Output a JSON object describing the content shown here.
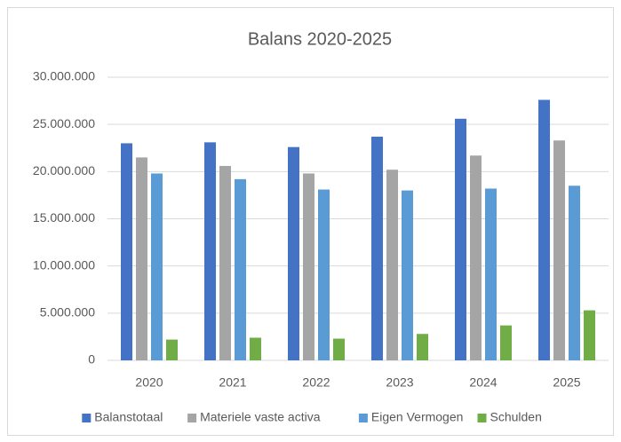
{
  "chart_data": {
    "type": "bar",
    "title": "Balans 2020-2025",
    "categories": [
      "2020",
      "2021",
      "2022",
      "2023",
      "2024",
      "2025"
    ],
    "series": [
      {
        "name": "Balanstotaal",
        "color": "#4472c4",
        "values": [
          23000000,
          23100000,
          22600000,
          23700000,
          25600000,
          27600000
        ]
      },
      {
        "name": "Materiele vaste activa",
        "color": "#a5a5a5",
        "values": [
          21500000,
          20600000,
          19800000,
          20200000,
          21700000,
          23300000
        ]
      },
      {
        "name": "Eigen Vermogen",
        "color": "#5b9bd5",
        "values": [
          19800000,
          19200000,
          18100000,
          18000000,
          18200000,
          18500000
        ]
      },
      {
        "name": "Schulden",
        "color": "#70ad47",
        "values": [
          2200000,
          2400000,
          2300000,
          2800000,
          3700000,
          5300000
        ]
      }
    ],
    "ylim": [
      0,
      30000000
    ],
    "yticks": [
      0,
      {
        "value": 5000000,
        "label": "5.000.000"
      },
      {
        "value": 10000000,
        "label": "10.000.000"
      },
      {
        "value": 15000000,
        "label": "15.000.000"
      },
      {
        "value": 20000000,
        "label": "20.000.000"
      },
      {
        "value": 25000000,
        "label": "25.000.000"
      },
      {
        "value": 30000000,
        "label": "30.000.000"
      }
    ],
    "grid": true,
    "legend": "bottom"
  }
}
